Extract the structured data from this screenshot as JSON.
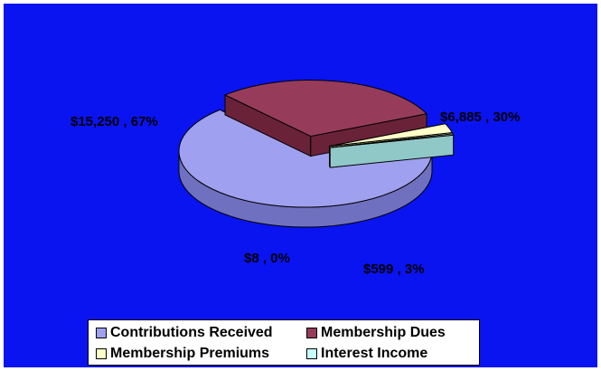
{
  "chart_data": {
    "type": "pie",
    "style": "3d-exploded",
    "title": "",
    "background": "#0a14f0",
    "slices": [
      {
        "name": "Contributions Received",
        "value": 15250,
        "label": "$15,250 , 67%",
        "color": "#a0a0f0",
        "side_color": "#7070c0"
      },
      {
        "name": "Membership Dues",
        "value": 6885,
        "label": "$6,885 , 30%",
        "color": "#963c5a",
        "side_color": "#6a2238"
      },
      {
        "name": "Membership Premiums",
        "value": 599,
        "label": "$599 , 3%",
        "color": "#ffffc8",
        "side_color": "#c8c890"
      },
      {
        "name": "Interest Income",
        "value": 8,
        "label": "$8 , 0%",
        "color": "#c8ffff",
        "side_color": "#90c8c8"
      }
    ],
    "legend": {
      "placement": "bottom",
      "entries": [
        "Contributions Received",
        "Membership Dues",
        "Membership Premiums",
        "Interest Income"
      ]
    }
  }
}
